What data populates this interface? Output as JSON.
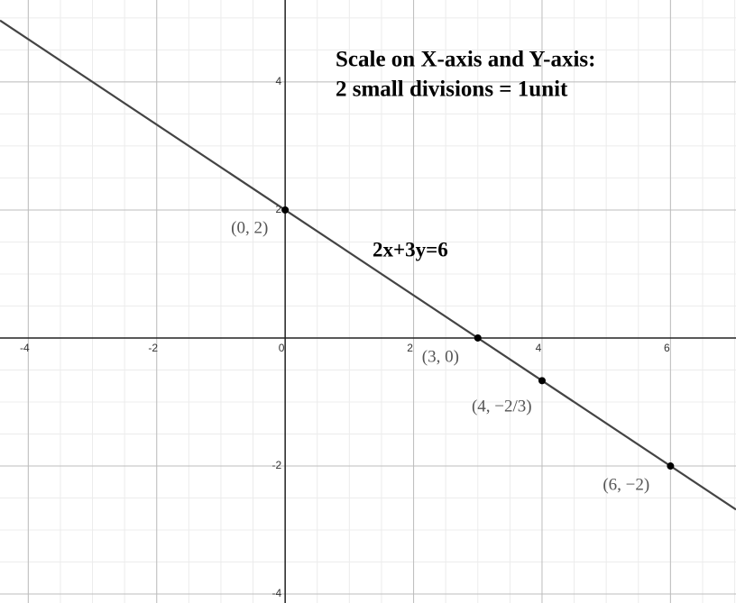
{
  "chart_data": {
    "type": "line",
    "annotations": [
      "Scale on X-axis and Y-axis:",
      "2 small divisions = 1unit"
    ],
    "series": [
      {
        "name": "2x+3y=6",
        "color": "#444444",
        "x": [
          -4.44,
          7.02
        ],
        "values": [
          4.96,
          -2.68
        ]
      }
    ],
    "points": {
      "x": [
        0,
        3,
        4,
        6
      ],
      "values": [
        2,
        0,
        -0.667,
        -2
      ],
      "value_labels": [
        "(0, 2)",
        "(3, 0)",
        "(4, −2/3)",
        "(6, −2)"
      ],
      "color": "#000000"
    },
    "xlim": [
      -4.44,
      7.02
    ],
    "ylim": [
      -4.14,
      5.28
    ],
    "xticks": [
      -4,
      -2,
      0,
      2,
      4,
      6
    ],
    "yticks": [
      -4,
      -2,
      2,
      4
    ],
    "minor_step": 0.5,
    "grid": true
  }
}
